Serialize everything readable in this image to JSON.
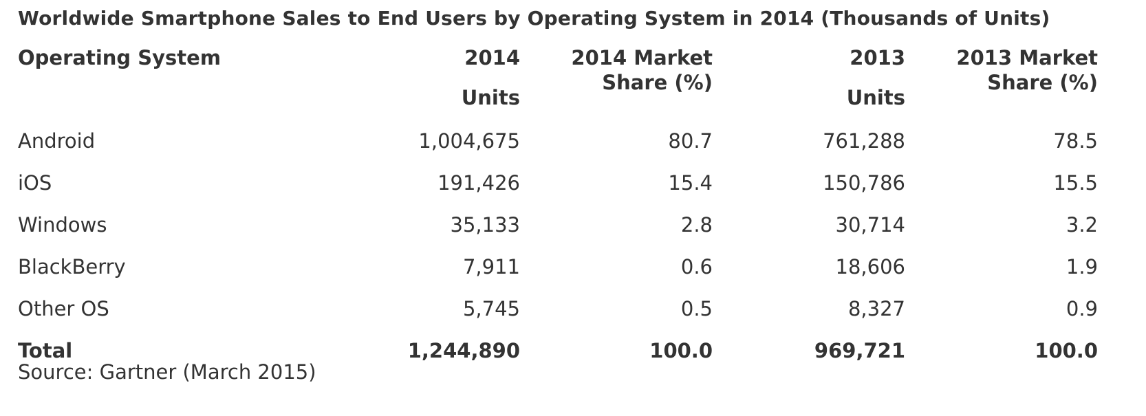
{
  "title": "Worldwide Smartphone Sales to End Users by Operating System in 2014 (Thousands of Units)",
  "headers": {
    "os": "Operating System",
    "units_2014_year": "2014",
    "units_2014_label": "Units",
    "share_2014_line1": "2014 Market",
    "share_2014_line2": "Share (%)",
    "units_2013_year": "2013",
    "units_2013_label": "Units",
    "share_2013_line1": "2013 Market",
    "share_2013_line2": "Share (%)"
  },
  "rows": [
    {
      "os": "Android",
      "units_2014": "1,004,675",
      "share_2014": "80.7",
      "units_2013": "761,288",
      "share_2013": "78.5"
    },
    {
      "os": "iOS",
      "units_2014": "191,426",
      "share_2014": "15.4",
      "units_2013": "150,786",
      "share_2013": "15.5"
    },
    {
      "os": "Windows",
      "units_2014": "35,133",
      "share_2014": "2.8",
      "units_2013": "30,714",
      "share_2013": "3.2"
    },
    {
      "os": "BlackBerry",
      "units_2014": "7,911",
      "share_2014": "0.6",
      "units_2013": "18,606",
      "share_2013": "1.9"
    },
    {
      "os": "Other OS",
      "units_2014": "5,745",
      "share_2014": "0.5",
      "units_2013": "8,327",
      "share_2013": "0.9"
    }
  ],
  "total": {
    "os": "Total",
    "units_2014": "1,244,890",
    "share_2014": "100.0",
    "units_2013": "969,721",
    "share_2013": "100.0"
  },
  "source": "Source: Gartner (March 2015)",
  "colors": {
    "text": "#333333",
    "background": "#ffffff"
  }
}
